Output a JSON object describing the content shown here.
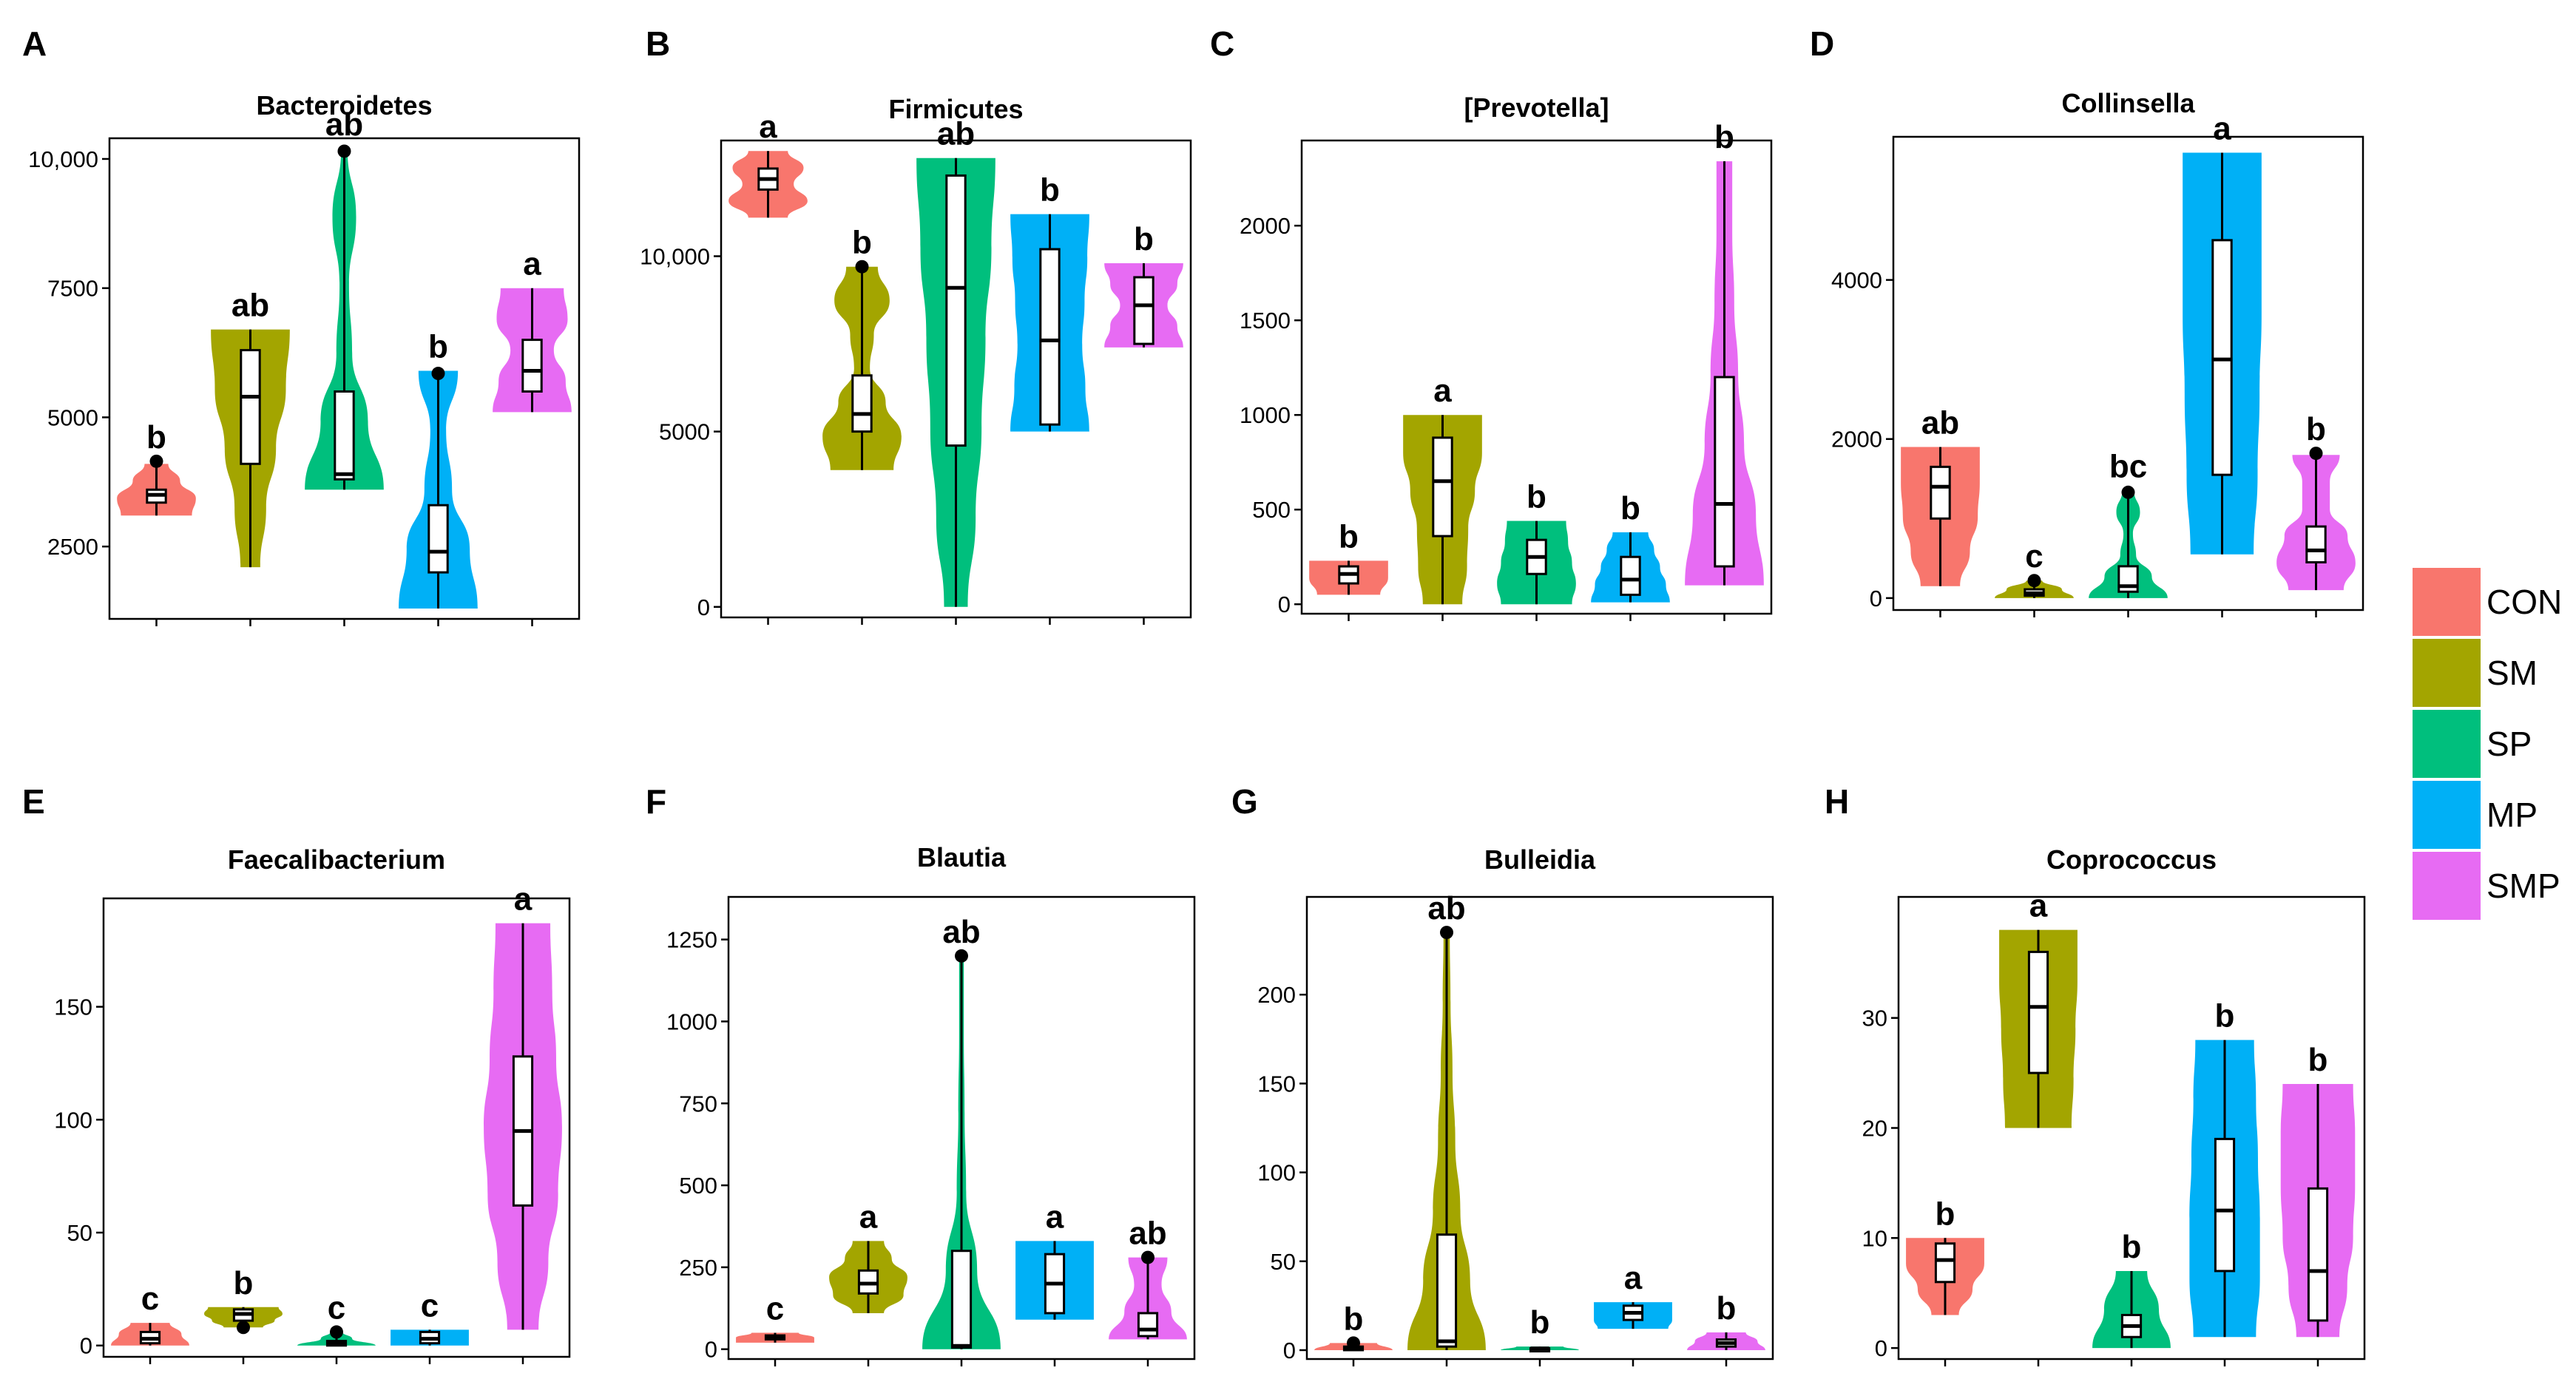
{
  "colors": {
    "CON": "#F8766D",
    "SM": "#A3A500",
    "SP": "#00BF7D",
    "MP": "#00B0F6",
    "SMP": "#E76BF3"
  },
  "legend": {
    "items": [
      "CON",
      "SM",
      "SP",
      "MP",
      "SMP"
    ]
  },
  "chart_data": [
    {
      "panel": "A",
      "title": "Bacteroidetes",
      "type": "violin",
      "ylim": [
        1100,
        10400
      ],
      "yticks": [
        {
          "value": 2500,
          "label": "2500"
        },
        {
          "value": 5000,
          "label": "5000"
        },
        {
          "value": 7500,
          "label": "7500"
        },
        {
          "value": 10000,
          "label": "10,000"
        }
      ],
      "groups": [
        {
          "name": "CON",
          "letter": "b",
          "min": 3100,
          "max": 4100,
          "q1": 3350,
          "median": 3500,
          "q3": 3600,
          "outliers": [
            4150
          ],
          "density": [
            0.9,
            1,
            0.6,
            0.3
          ]
        },
        {
          "name": "SM",
          "letter": "ab",
          "min": 2100,
          "max": 6700,
          "q1": 4100,
          "median": 5400,
          "q3": 6300,
          "outliers": [],
          "density": [
            0.25,
            0.4,
            0.65,
            0.9,
            1
          ]
        },
        {
          "name": "SP",
          "letter": "ab",
          "min": 3600,
          "max": 10200,
          "q1": 3800,
          "median": 3900,
          "q3": 5500,
          "outliers": [
            10150
          ],
          "density": [
            1,
            0.6,
            0.2,
            0.12,
            0.3,
            0.08
          ]
        },
        {
          "name": "MP",
          "letter": "b",
          "min": 1300,
          "max": 5900,
          "q1": 2000,
          "median": 2400,
          "q3": 3300,
          "outliers": [
            5850
          ],
          "density": [
            1,
            0.8,
            0.35,
            0.2,
            0.5
          ]
        },
        {
          "name": "SMP",
          "letter": "a",
          "min": 5100,
          "max": 7500,
          "q1": 5500,
          "median": 5900,
          "q3": 6500,
          "outliers": [],
          "density": [
            1,
            0.85,
            0.55,
            0.9,
            0.8
          ]
        }
      ]
    },
    {
      "panel": "B",
      "title": "Firmicutes",
      "type": "violin",
      "ylim": [
        -300,
        13300
      ],
      "yticks": [
        {
          "value": 0,
          "label": "0"
        },
        {
          "value": 5000,
          "label": "5000"
        },
        {
          "value": 10000,
          "label": "10,000"
        }
      ],
      "groups": [
        {
          "name": "CON",
          "letter": "a",
          "min": 11100,
          "max": 13000,
          "q1": 11900,
          "median": 12200,
          "q3": 12500,
          "outliers": [],
          "density": [
            0.5,
            1,
            0.65,
            0.9,
            0.5
          ]
        },
        {
          "name": "SM",
          "letter": "b",
          "min": 3900,
          "max": 9700,
          "q1": 5000,
          "median": 5500,
          "q3": 6600,
          "outliers": [
            9700
          ],
          "density": [
            0.8,
            1,
            0.6,
            0.2,
            0.3,
            0.7,
            0.4
          ]
        },
        {
          "name": "SP",
          "letter": "ab",
          "min": 0,
          "max": 12800,
          "q1": 4600,
          "median": 9100,
          "q3": 12300,
          "outliers": [],
          "density": [
            0.3,
            0.5,
            0.65,
            0.75,
            0.9,
            1
          ]
        },
        {
          "name": "MP",
          "letter": "b",
          "min": 5000,
          "max": 11200,
          "q1": 5200,
          "median": 7600,
          "q3": 10200,
          "outliers": [],
          "density": [
            1,
            0.9,
            0.82,
            0.88,
            0.95,
            1
          ]
        },
        {
          "name": "SMP",
          "letter": "b",
          "min": 7400,
          "max": 9800,
          "q1": 7500,
          "median": 8600,
          "q3": 9400,
          "outliers": [],
          "density": [
            1,
            0.85,
            0.6,
            0.85,
            1
          ]
        }
      ]
    },
    {
      "panel": "C",
      "title": "[Prevotella]",
      "type": "violin",
      "ylim": [
        -50,
        2450
      ],
      "yticks": [
        {
          "value": 0,
          "label": "0"
        },
        {
          "value": 500,
          "label": "500"
        },
        {
          "value": 1000,
          "label": "1000"
        },
        {
          "value": 1500,
          "label": "1500"
        },
        {
          "value": 2000,
          "label": "2000"
        }
      ],
      "groups": [
        {
          "name": "CON",
          "letter": "b",
          "min": 50,
          "max": 230,
          "q1": 110,
          "median": 160,
          "q3": 200,
          "outliers": [],
          "density": [
            0.8,
            1,
            1
          ]
        },
        {
          "name": "SM",
          "letter": "a",
          "min": 0,
          "max": 1000,
          "q1": 360,
          "median": 650,
          "q3": 880,
          "outliers": [],
          "density": [
            0.5,
            0.62,
            0.65,
            0.82,
            1,
            1
          ]
        },
        {
          "name": "SP",
          "letter": "b",
          "min": 0,
          "max": 440,
          "q1": 160,
          "median": 250,
          "q3": 340,
          "outliers": [],
          "density": [
            0.9,
            1,
            0.9,
            0.8,
            0.75
          ]
        },
        {
          "name": "MP",
          "letter": "b",
          "min": 10,
          "max": 380,
          "q1": 50,
          "median": 130,
          "q3": 250,
          "outliers": [],
          "density": [
            1,
            0.9,
            0.75,
            0.6,
            0.45
          ]
        },
        {
          "name": "SMP",
          "letter": "b",
          "min": 100,
          "max": 2340,
          "q1": 200,
          "median": 530,
          "q3": 1200,
          "outliers": [],
          "density": [
            1,
            0.8,
            0.5,
            0.35,
            0.25,
            0.2,
            0.2
          ]
        }
      ]
    },
    {
      "panel": "D",
      "title": "Collinsella",
      "type": "violin",
      "ylim": [
        -150,
        5800
      ],
      "yticks": [
        {
          "value": 0,
          "label": "0"
        },
        {
          "value": 2000,
          "label": "2000"
        },
        {
          "value": 4000,
          "label": "4000"
        }
      ],
      "groups": [
        {
          "name": "CON",
          "letter": "ab",
          "min": 150,
          "max": 1900,
          "q1": 1000,
          "median": 1400,
          "q3": 1650,
          "outliers": [],
          "density": [
            0.5,
            0.75,
            0.95,
            1,
            1
          ]
        },
        {
          "name": "SM",
          "letter": "c",
          "min": 0,
          "max": 220,
          "q1": 30,
          "median": 60,
          "q3": 110,
          "outliers": [
            220
          ],
          "density": [
            1,
            0.7,
            0.2
          ]
        },
        {
          "name": "SP",
          "letter": "bc",
          "min": 0,
          "max": 1350,
          "q1": 80,
          "median": 150,
          "q3": 400,
          "outliers": [
            1330
          ],
          "density": [
            1,
            0.6,
            0.2,
            0.12,
            0.3,
            0.15
          ]
        },
        {
          "name": "MP",
          "letter": "a",
          "min": 550,
          "max": 5600,
          "q1": 1550,
          "median": 3000,
          "q3": 4500,
          "outliers": [],
          "density": [
            0.8,
            0.9,
            0.95,
            1,
            1,
            1
          ]
        },
        {
          "name": "SMP",
          "letter": "b",
          "min": 100,
          "max": 1800,
          "q1": 450,
          "median": 600,
          "q3": 900,
          "outliers": [
            1820
          ],
          "density": [
            0.7,
            1,
            0.8,
            0.35,
            0.35,
            0.6
          ]
        }
      ]
    },
    {
      "panel": "E",
      "title": "Faecalibacterium",
      "type": "violin",
      "ylim": [
        -5,
        198
      ],
      "yticks": [
        {
          "value": 0,
          "label": "0"
        },
        {
          "value": 50,
          "label": "50"
        },
        {
          "value": 100,
          "label": "100"
        },
        {
          "value": 150,
          "label": "150"
        }
      ],
      "groups": [
        {
          "name": "CON",
          "letter": "c",
          "min": 0,
          "max": 10,
          "q1": 1,
          "median": 3,
          "q3": 6,
          "outliers": [],
          "density": [
            1,
            0.8,
            0.5
          ]
        },
        {
          "name": "SM",
          "letter": "b",
          "min": 8,
          "max": 17,
          "q1": 11,
          "median": 14,
          "q3": 16,
          "outliers": [
            8
          ],
          "density": [
            0.5,
            0.8,
            1,
            0.9
          ]
        },
        {
          "name": "SP",
          "letter": "c",
          "min": 0,
          "max": 6,
          "q1": 0,
          "median": 1,
          "q3": 2,
          "outliers": [
            6
          ],
          "density": [
            1,
            0.4,
            0.15
          ]
        },
        {
          "name": "MP",
          "letter": "c",
          "min": 0,
          "max": 7,
          "q1": 1,
          "median": 3,
          "q3": 6,
          "outliers": [],
          "density": [
            1,
            1,
            1
          ]
        },
        {
          "name": "SMP",
          "letter": "a",
          "min": 7,
          "max": 187,
          "q1": 62,
          "median": 95,
          "q3": 128,
          "outliers": [],
          "density": [
            0.4,
            0.65,
            0.9,
            1,
            0.85,
            0.75,
            0.7
          ]
        }
      ]
    },
    {
      "panel": "F",
      "title": "Blautia",
      "type": "violin",
      "ylim": [
        -30,
        1380
      ],
      "yticks": [
        {
          "value": 0,
          "label": "0"
        },
        {
          "value": 250,
          "label": "250"
        },
        {
          "value": 500,
          "label": "500"
        },
        {
          "value": 750,
          "label": "750"
        },
        {
          "value": 1000,
          "label": "1000"
        },
        {
          "value": 1250,
          "label": "1250"
        }
      ],
      "groups": [
        {
          "name": "CON",
          "letter": "c",
          "min": 20,
          "max": 50,
          "q1": 30,
          "median": 35,
          "q3": 42,
          "outliers": [],
          "density": [
            1,
            1,
            0.6
          ]
        },
        {
          "name": "SM",
          "letter": "a",
          "min": 110,
          "max": 330,
          "q1": 170,
          "median": 200,
          "q3": 240,
          "outliers": [],
          "density": [
            0.4,
            0.9,
            1,
            0.6,
            0.4
          ]
        },
        {
          "name": "SP",
          "letter": "ab",
          "min": 0,
          "max": 1200,
          "q1": 5,
          "median": 10,
          "q3": 300,
          "outliers": [
            1200
          ],
          "density": [
            1,
            0.4,
            0.12,
            0.08,
            0.06,
            0.06
          ]
        },
        {
          "name": "MP",
          "letter": "a",
          "min": 90,
          "max": 330,
          "q1": 110,
          "median": 200,
          "q3": 290,
          "outliers": [],
          "density": [
            1,
            1,
            1,
            1
          ]
        },
        {
          "name": "SMP",
          "letter": "ab",
          "min": 30,
          "max": 280,
          "q1": 40,
          "median": 60,
          "q3": 110,
          "outliers": [
            280
          ],
          "density": [
            1,
            0.6,
            0.35,
            0.5
          ]
        }
      ]
    },
    {
      "panel": "G",
      "title": "Bulleidia",
      "type": "violin",
      "ylim": [
        -5,
        255
      ],
      "yticks": [
        {
          "value": 0,
          "label": "0"
        },
        {
          "value": 50,
          "label": "50"
        },
        {
          "value": 100,
          "label": "100"
        },
        {
          "value": 150,
          "label": "150"
        },
        {
          "value": 200,
          "label": "200"
        }
      ],
      "groups": [
        {
          "name": "CON",
          "letter": "b",
          "min": 0,
          "max": 4,
          "q1": 0,
          "median": 1,
          "q3": 2,
          "outliers": [
            4
          ],
          "density": [
            1,
            0.6
          ]
        },
        {
          "name": "SM",
          "letter": "ab",
          "min": 0,
          "max": 235,
          "q1": 2,
          "median": 5,
          "q3": 65,
          "outliers": [
            235
          ],
          "density": [
            1,
            0.6,
            0.35,
            0.22,
            0.15,
            0.1,
            0.08
          ]
        },
        {
          "name": "SP",
          "letter": "b",
          "min": 0,
          "max": 2,
          "q1": 0,
          "median": 1,
          "q3": 1,
          "outliers": [],
          "density": [
            1,
            0.6
          ]
        },
        {
          "name": "MP",
          "letter": "a",
          "min": 12,
          "max": 27,
          "q1": 17,
          "median": 21,
          "q3": 25,
          "outliers": [],
          "density": [
            0.9,
            1,
            1,
            1
          ]
        },
        {
          "name": "SMP",
          "letter": "b",
          "min": 0,
          "max": 10,
          "q1": 2,
          "median": 4,
          "q3": 6,
          "outliers": [],
          "density": [
            1,
            0.8,
            0.5
          ]
        }
      ]
    },
    {
      "panel": "H",
      "title": "Coprococcus",
      "type": "violin",
      "ylim": [
        -1,
        41
      ],
      "yticks": [
        {
          "value": 0,
          "label": "0"
        },
        {
          "value": 10,
          "label": "10"
        },
        {
          "value": 20,
          "label": "20"
        },
        {
          "value": 30,
          "label": "30"
        }
      ],
      "groups": [
        {
          "name": "CON",
          "letter": "b",
          "min": 3,
          "max": 10,
          "q1": 6,
          "median": 8,
          "q3": 9.5,
          "outliers": [],
          "density": [
            0.35,
            0.7,
            1,
            1
          ]
        },
        {
          "name": "SM",
          "letter": "a",
          "min": 20,
          "max": 38,
          "q1": 25,
          "median": 31,
          "q3": 36,
          "outliers": [],
          "density": [
            0.85,
            0.9,
            0.95,
            1,
            1
          ]
        },
        {
          "name": "SP",
          "letter": "b",
          "min": 0,
          "max": 7,
          "q1": 1,
          "median": 2,
          "q3": 3,
          "outliers": [],
          "density": [
            1,
            0.7,
            0.4
          ]
        },
        {
          "name": "MP",
          "letter": "b",
          "min": 1,
          "max": 28,
          "q1": 7,
          "median": 12.5,
          "q3": 19,
          "outliers": [],
          "density": [
            0.8,
            0.9,
            0.9,
            0.85,
            0.8,
            0.75
          ]
        },
        {
          "name": "SMP",
          "letter": "b",
          "min": 1,
          "max": 24,
          "q1": 2.5,
          "median": 7,
          "q3": 14.5,
          "outliers": [],
          "density": [
            0.55,
            0.75,
            0.9,
            0.95,
            0.95,
            0.9
          ]
        }
      ]
    }
  ]
}
